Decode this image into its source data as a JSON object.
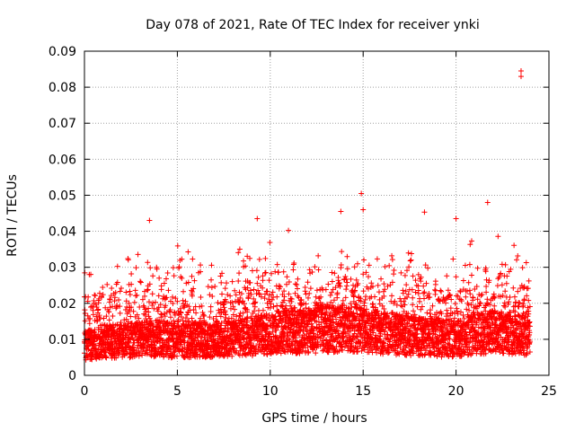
{
  "chart_data": {
    "type": "scatter",
    "title": "Day 078 of 2021, Rate Of TEC Index for receiver ynki",
    "xlabel": "GPS time / hours",
    "ylabel": "ROTI / TECUs",
    "xlim": [
      0,
      25
    ],
    "ylim": [
      0,
      0.09
    ],
    "x_ticks": [
      0,
      5,
      10,
      15,
      20,
      25
    ],
    "x_tick_labels": [
      "0",
      "5",
      "10",
      "15",
      "20",
      "25"
    ],
    "y_ticks": [
      0,
      0.01,
      0.02,
      0.03,
      0.04,
      0.05,
      0.06,
      0.07,
      0.08,
      0.09
    ],
    "y_tick_labels": [
      "0",
      "0.01",
      "0.02",
      "0.03",
      "0.04",
      "0.05",
      "0.06",
      "0.07",
      "0.08",
      "0.09"
    ],
    "grid": true,
    "marker": "+",
    "marker_color": "#ff0000",
    "sampling_hours": 0.02,
    "x_range": [
      0,
      23.98
    ],
    "baseline_roti": [
      [
        0,
        0.009
      ],
      [
        1,
        0.0105
      ],
      [
        2,
        0.0105
      ],
      [
        3,
        0.011
      ],
      [
        4,
        0.0115
      ],
      [
        5,
        0.0105
      ],
      [
        6,
        0.011
      ],
      [
        7,
        0.011
      ],
      [
        8,
        0.0115
      ],
      [
        9,
        0.012
      ],
      [
        10,
        0.013
      ],
      [
        11,
        0.0135
      ],
      [
        12,
        0.0135
      ],
      [
        13,
        0.014
      ],
      [
        14,
        0.0145
      ],
      [
        15,
        0.014
      ],
      [
        16,
        0.013
      ],
      [
        17,
        0.0125
      ],
      [
        18,
        0.012
      ],
      [
        19,
        0.0115
      ],
      [
        20,
        0.011
      ],
      [
        21,
        0.0125
      ],
      [
        22,
        0.0135
      ],
      [
        23,
        0.013
      ],
      [
        24,
        0.012
      ]
    ],
    "notable_points": [
      {
        "x": 3.5,
        "y": 0.043
      },
      {
        "x": 9.3,
        "y": 0.0435
      },
      {
        "x": 13.8,
        "y": 0.0455
      },
      {
        "x": 14.9,
        "y": 0.0505
      },
      {
        "x": 15.0,
        "y": 0.046
      },
      {
        "x": 18.3,
        "y": 0.0453
      },
      {
        "x": 20.0,
        "y": 0.0435
      },
      {
        "x": 21.7,
        "y": 0.048
      },
      {
        "x": 23.5,
        "y": 0.0845
      },
      {
        "x": 23.5,
        "y": 0.083
      }
    ]
  }
}
